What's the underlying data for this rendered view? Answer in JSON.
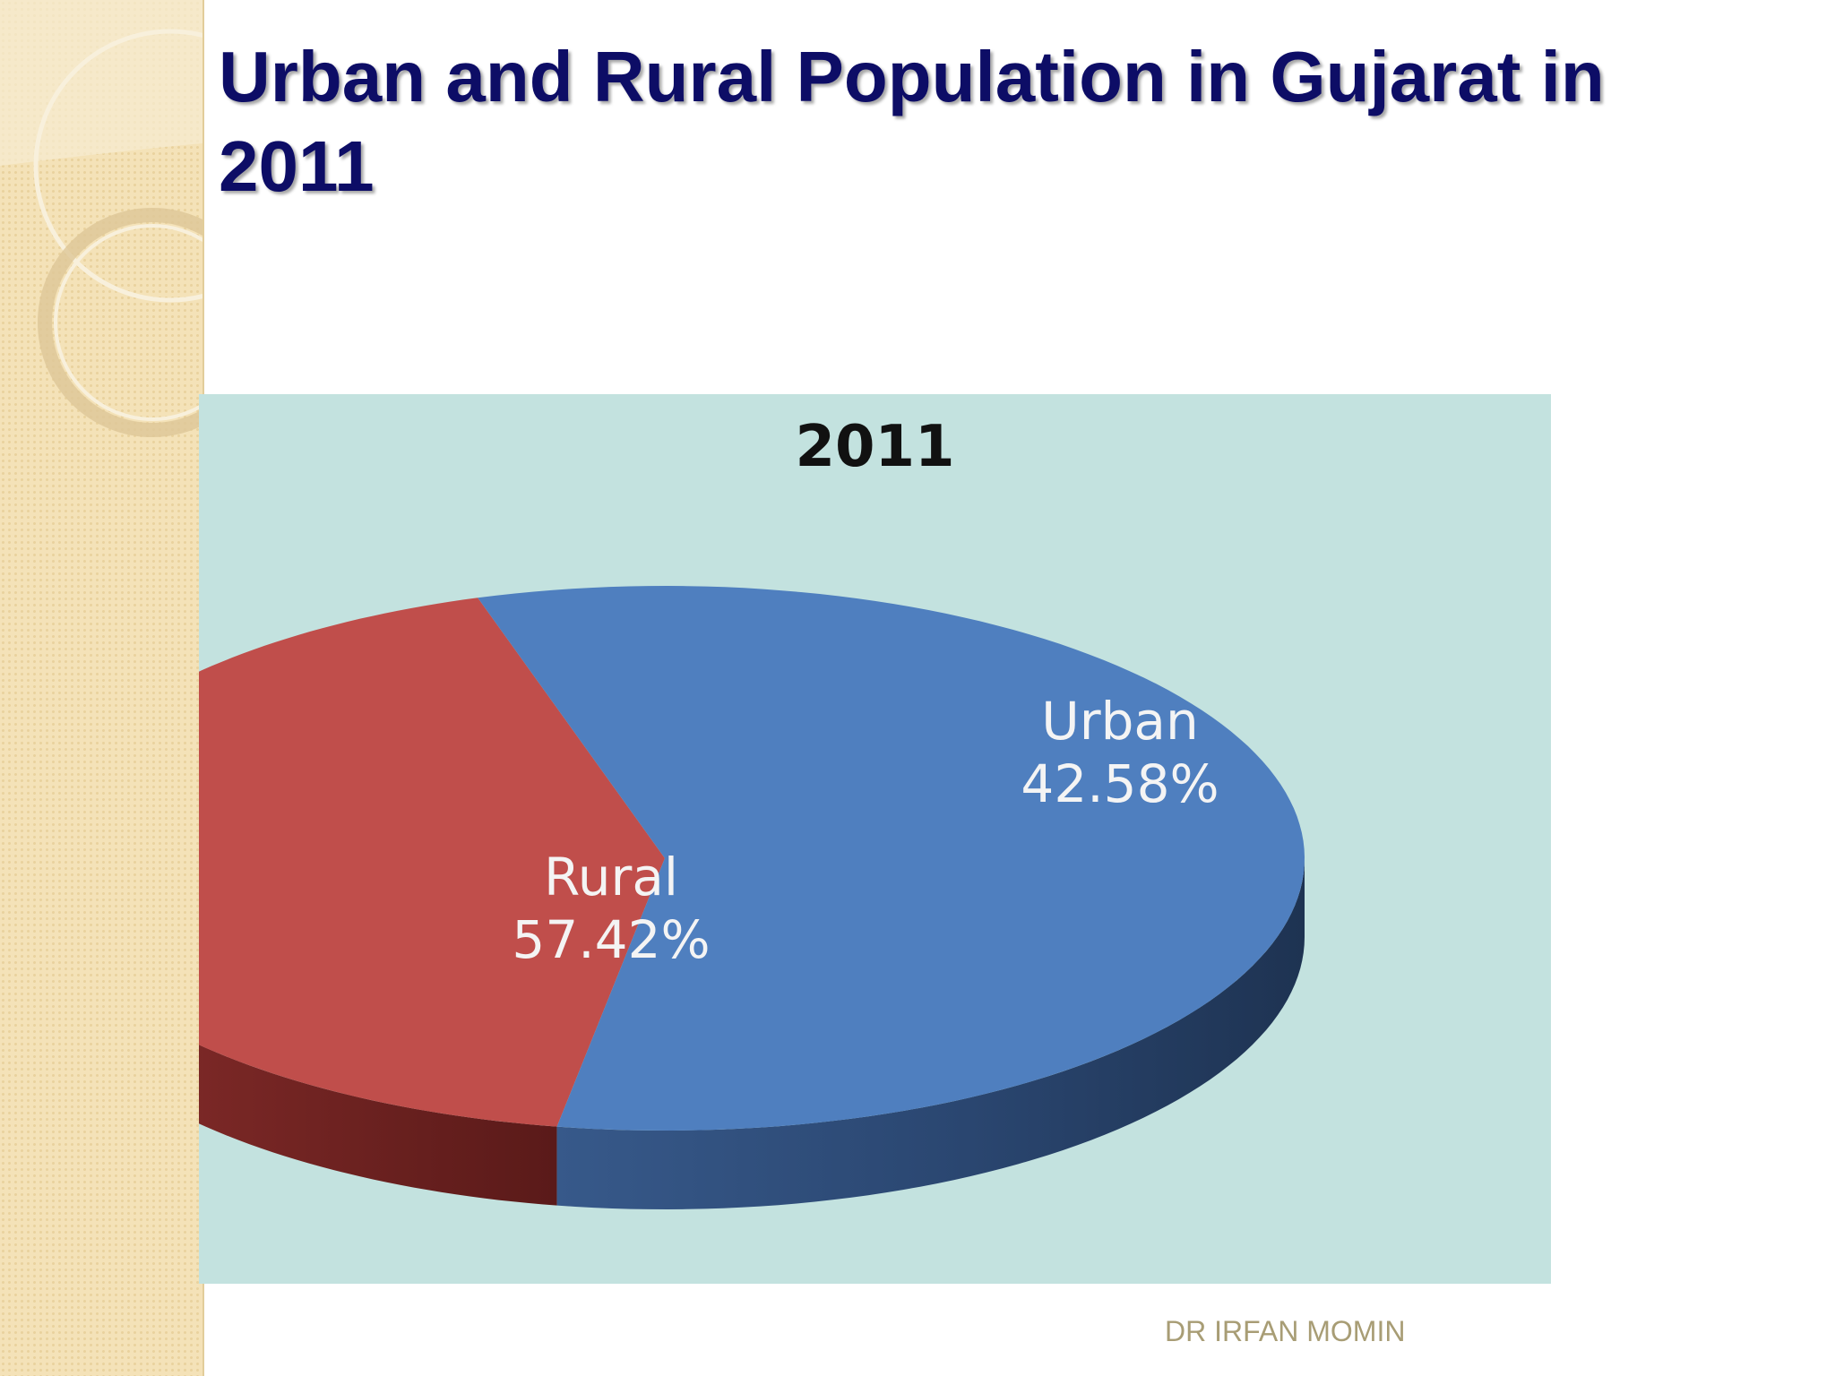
{
  "slide": {
    "title": "Urban and Rural Population in Gujarat in 2011",
    "footer": "DR IRFAN MOMIN"
  },
  "colors": {
    "title": "#0d0d66",
    "chart_background": "#c3e2df",
    "rural": "#4f7fbf",
    "urban": "#c04e4b",
    "footer": "#a89d75"
  },
  "chart_data": {
    "type": "pie",
    "title": "2011",
    "slices": [
      {
        "label": "Rural",
        "value": 57.42,
        "value_label": "57.42%",
        "color": "#4f7fbf"
      },
      {
        "label": "Urban",
        "value": 42.58,
        "value_label": "42.58%",
        "color": "#c04e4b"
      }
    ]
  }
}
